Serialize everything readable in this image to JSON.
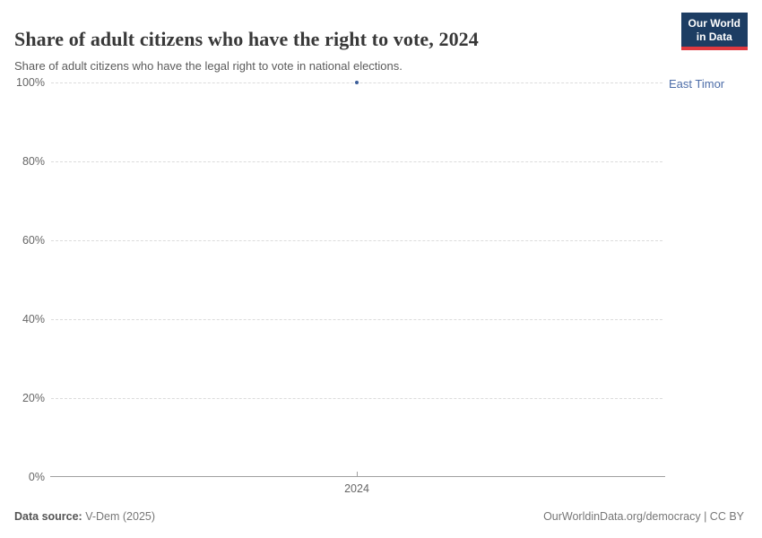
{
  "header": {
    "title": "Share of adult citizens who have the right to vote, 2024",
    "subtitle": "Share of adult citizens who have the legal right to vote in national elections.",
    "logo_line1": "Our World",
    "logo_line2": "in Data"
  },
  "chart_data": {
    "type": "scatter",
    "title": "Share of adult citizens who have the right to vote, 2024",
    "x": [
      2024
    ],
    "series": [
      {
        "name": "East Timor",
        "values": [
          100
        ]
      }
    ],
    "xlabel": "",
    "ylabel": "",
    "ylim": [
      0,
      100
    ],
    "ytick_labels": [
      "0%",
      "20%",
      "40%",
      "60%",
      "80%",
      "100%"
    ],
    "xtick_labels": [
      "2024"
    ],
    "grid": "horizontal-dashed",
    "legend_position": "right-of-point",
    "point_color": "#3c5e9a",
    "entity_label_color": "#4d6da8"
  },
  "axes": {
    "y_labels": {
      "p100": "100%",
      "p80": "80%",
      "p60": "60%",
      "p40": "40%",
      "p20": "20%",
      "p0": "0%"
    },
    "x_label": "2024"
  },
  "annotation": {
    "entity": "East Timor"
  },
  "footer": {
    "source_label": "Data source:",
    "source_value": " V-Dem (2025)",
    "license": "OurWorldinData.org/democracy | CC BY"
  },
  "colors": {
    "accent_navy": "#1d3d63",
    "accent_red": "#e0393f",
    "point_blue": "#3c5e9a",
    "entity_blue": "#4d6da8",
    "grid_gray": "#dcdcdc",
    "axis_gray": "#a0a0a0",
    "text_dark": "#383838",
    "text_muted": "#666666"
  }
}
